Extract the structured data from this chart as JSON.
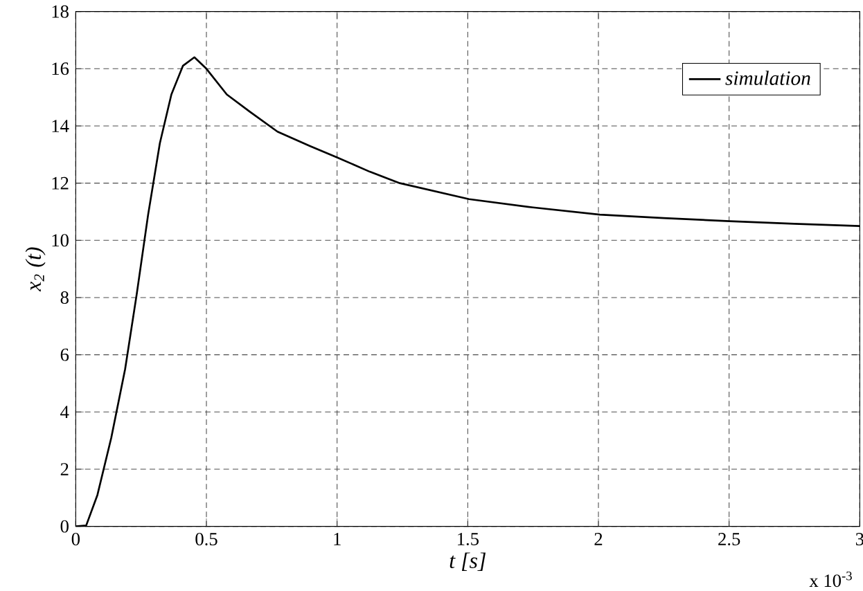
{
  "chart_data": {
    "type": "line",
    "xlabel": "*t [s]*",
    "ylabel": "*x$_{2}$ (t)*",
    "annotations": [
      "x 10$^{-3}$"
    ],
    "xlim": [
      0,
      3
    ],
    "xticks": [
      0,
      0.5,
      1,
      1.5,
      2,
      2.5,
      3
    ],
    "ylim": [
      0,
      18
    ],
    "yticks": [
      0,
      2,
      4,
      6,
      8,
      10,
      12,
      14,
      16,
      18
    ],
    "grid": true,
    "legend": "top right",
    "series": [
      {
        "name": "*simulation*",
        "color": "#000000",
        "x": [
          0,
          0.04,
          0.083,
          0.136,
          0.189,
          0.233,
          0.277,
          0.322,
          0.366,
          0.41,
          0.454,
          0.5,
          0.578,
          0.666,
          0.772,
          0.896,
          1.0,
          1.125,
          1.24,
          1.505,
          1.75,
          2.005,
          2.25,
          2.503,
          2.75,
          3.0
        ],
        "values": [
          0,
          0.03,
          1.1,
          3.1,
          5.5,
          8.1,
          10.9,
          13.4,
          15.1,
          16.1,
          16.4,
          16.0,
          15.1,
          14.5,
          13.8,
          13.3,
          12.9,
          12.4,
          12.0,
          11.44,
          11.15,
          10.9,
          10.78,
          10.67,
          10.58,
          10.5
        ]
      }
    ]
  }
}
